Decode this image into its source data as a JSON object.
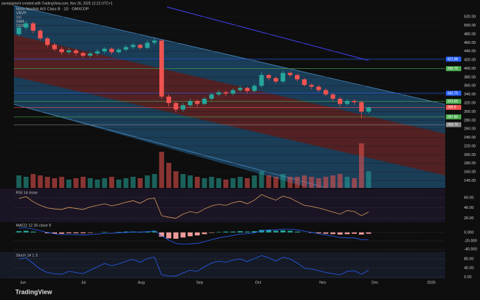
{
  "credit": "savepigment created with TradingView.com, Nov 26, 2025 12:22 UTC+1",
  "brand": "TradingView",
  "chart_data": {
    "type": "candlestick",
    "title": "Novo Nordisk A/S Class B · 1D · OMXCOP",
    "legend": [
      "VRVP",
      "Vol",
      "SMA",
      "SMA"
    ],
    "up_color": "#26a69a",
    "down_color": "#ef5350",
    "open": [
      480,
      495,
      505,
      488,
      470,
      455,
      445,
      438,
      442,
      436,
      430,
      435,
      440,
      446,
      438,
      444,
      450,
      455,
      448,
      460,
      465,
      335,
      320,
      305,
      315,
      325,
      318,
      330,
      340,
      345,
      342,
      350,
      355,
      348,
      360,
      385,
      378,
      370,
      390,
      385,
      375,
      362,
      358,
      350,
      340,
      330,
      318,
      325,
      322,
      300
    ],
    "high": [
      500,
      512,
      508,
      492,
      474,
      460,
      450,
      447,
      446,
      440,
      440,
      445,
      450,
      449,
      448,
      455,
      460,
      458,
      465,
      472,
      468,
      340,
      325,
      320,
      330,
      328,
      334,
      344,
      350,
      349,
      354,
      360,
      358,
      364,
      392,
      388,
      382,
      396,
      394,
      388,
      378,
      366,
      362,
      354,
      344,
      334,
      330,
      329,
      326,
      312
    ],
    "low": [
      475,
      490,
      482,
      465,
      450,
      440,
      432,
      433,
      430,
      425,
      426,
      430,
      435,
      433,
      434,
      440,
      446,
      444,
      445,
      455,
      330,
      312,
      298,
      300,
      310,
      312,
      315,
      326,
      335,
      336,
      338,
      346,
      343,
      345,
      356,
      372,
      365,
      366,
      380,
      370,
      358,
      352,
      345,
      336,
      325,
      312,
      314,
      316,
      285,
      296
    ],
    "close": [
      495,
      505,
      488,
      470,
      455,
      445,
      438,
      442,
      436,
      430,
      435,
      440,
      446,
      438,
      444,
      450,
      455,
      448,
      460,
      465,
      335,
      320,
      305,
      315,
      325,
      318,
      330,
      340,
      345,
      342,
      350,
      355,
      348,
      360,
      385,
      378,
      370,
      390,
      385,
      375,
      362,
      358,
      350,
      340,
      330,
      318,
      325,
      322,
      300,
      309.9
    ],
    "ylim": [
      123,
      543
    ],
    "yticks": [
      {
        "value": 140,
        "label": "140.00"
      },
      {
        "value": 160,
        "label": "160.00"
      },
      {
        "value": 180,
        "label": "180.00"
      },
      {
        "value": 200,
        "label": "200.00"
      },
      {
        "value": 220,
        "label": "220.00"
      },
      {
        "value": 240,
        "label": "240.00"
      },
      {
        "value": 260,
        "label": "260.00"
      },
      {
        "value": 280,
        "label": "280.00"
      },
      {
        "value": 300,
        "label": "300.00"
      },
      {
        "value": 320,
        "label": "320.00"
      },
      {
        "value": 340,
        "label": "340.00"
      },
      {
        "value": 360,
        "label": "360.00"
      },
      {
        "value": 380,
        "label": "380.00"
      },
      {
        "value": 400,
        "label": "400.00"
      },
      {
        "value": 420,
        "label": "420.00"
      },
      {
        "value": 440,
        "label": "440.00"
      },
      {
        "value": 460,
        "label": "460.00"
      },
      {
        "value": 480,
        "label": "480.00"
      },
      {
        "value": 500,
        "label": "500.00"
      },
      {
        "value": 520,
        "label": "520.00"
      }
    ],
    "levels": [
      {
        "value": 421.88,
        "color": "#2962ff"
      },
      {
        "value": 399.75,
        "color": "#4caf50"
      },
      {
        "value": 342.75,
        "color": "#2962ff"
      },
      {
        "value": 323.65,
        "color": "#4caf50"
      },
      {
        "value": 309.9,
        "color": "#ef5350"
      },
      {
        "value": 287.85,
        "color": "#4caf50"
      },
      {
        "value": 269.75,
        "color": "#888888"
      }
    ],
    "x_labels": [
      "Jun",
      "Jul",
      "Aug",
      "Sep",
      "Oct",
      "Nov",
      "Dec",
      "2026"
    ],
    "volume": {
      "values": [
        9,
        8,
        10,
        9,
        8,
        7,
        8,
        6,
        7,
        8,
        7,
        6,
        7,
        8,
        6,
        7,
        8,
        7,
        9,
        10,
        26,
        18,
        12,
        10,
        9,
        8,
        7,
        8,
        7,
        6,
        7,
        8,
        7,
        9,
        12,
        9,
        8,
        10,
        8,
        8,
        9,
        8,
        7,
        8,
        9,
        10,
        8,
        7,
        32,
        12
      ],
      "ylim": [
        0,
        45
      ]
    },
    "rsi": {
      "title": "RSI 14 close",
      "values": [
        58,
        62,
        52,
        45,
        40,
        38,
        37,
        41,
        39,
        37,
        42,
        45,
        48,
        44,
        47,
        51,
        54,
        49,
        57,
        59,
        25,
        22,
        20,
        28,
        33,
        30,
        38,
        44,
        47,
        45,
        50,
        53,
        48,
        55,
        66,
        60,
        55,
        63,
        59,
        52,
        45,
        43,
        40,
        36,
        32,
        28,
        35,
        33,
        25,
        32
      ],
      "ylim": [
        14,
        76
      ],
      "yticks": [
        {
          "value": 60,
          "label": "60.00"
        },
        {
          "value": 40,
          "label": "40.00"
        },
        {
          "value": 20,
          "label": "20.00"
        }
      ]
    },
    "macd": {
      "title": "MACD 12 26 close 9",
      "histogram": [
        3,
        4,
        2,
        0,
        -2,
        -3,
        -3,
        -2,
        -2,
        -2,
        -1,
        0,
        1,
        0,
        1,
        2,
        2,
        1,
        2,
        3,
        -10,
        -14,
        -15,
        -12,
        -9,
        -7,
        -4,
        -1,
        1,
        2,
        2,
        3,
        2,
        3,
        6,
        6,
        4,
        5,
        4,
        2,
        0,
        -1,
        -2,
        -3,
        -4,
        -5,
        -4,
        -3,
        -5,
        -3
      ],
      "line": [
        10,
        11,
        8,
        4,
        0,
        -3,
        -5,
        -5,
        -5,
        -6,
        -5,
        -4,
        -2,
        -2,
        -1,
        0,
        1,
        1,
        2,
        4,
        -8,
        -18,
        -26,
        -28,
        -27,
        -26,
        -22,
        -17,
        -13,
        -10,
        -7,
        -4,
        -3,
        -1,
        4,
        6,
        6,
        8,
        8,
        6,
        3,
        0,
        -3,
        -6,
        -9,
        -12,
        -13,
        -13,
        -17,
        -17
      ],
      "ylim": [
        -43,
        23
      ],
      "yticks": [
        {
          "value": 0,
          "label": "0.000"
        },
        {
          "value": -20,
          "label": "-20.000"
        },
        {
          "value": -40,
          "label": "-40.000"
        }
      ]
    },
    "stoch": {
      "title": "Stoch 14 1 3",
      "values": [
        80,
        85,
        60,
        35,
        20,
        15,
        12,
        25,
        20,
        15,
        30,
        45,
        60,
        50,
        58,
        70,
        78,
        65,
        82,
        88,
        10,
        5,
        4,
        18,
        30,
        25,
        45,
        62,
        70,
        65,
        75,
        80,
        68,
        82,
        95,
        85,
        70,
        88,
        80,
        62,
        40,
        35,
        28,
        20,
        15,
        10,
        25,
        28,
        12,
        30
      ],
      "ylim": [
        0,
        100
      ],
      "yticks": [
        {
          "value": 80,
          "label": "80.00"
        },
        {
          "value": 40,
          "label": "40.00"
        },
        {
          "value": 0,
          "label": "0.00"
        }
      ]
    }
  }
}
